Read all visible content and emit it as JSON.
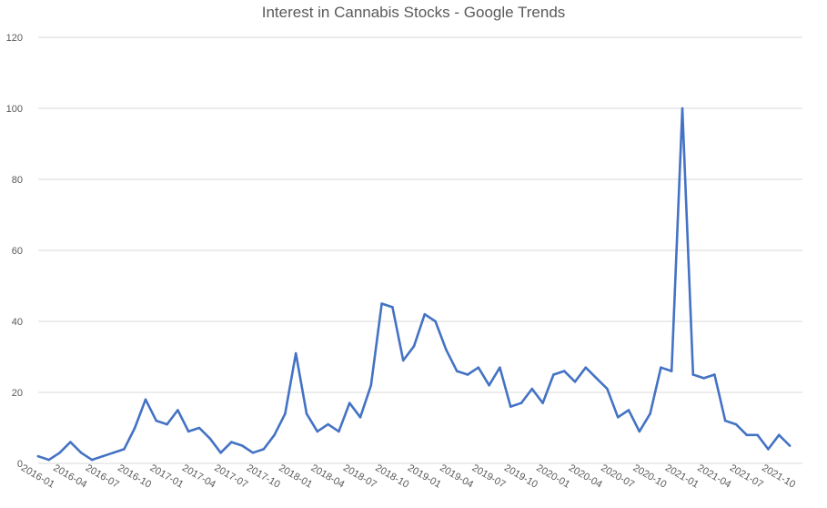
{
  "chart_data": {
    "type": "line",
    "title": "Interest in Cannabis Stocks - Google Trends",
    "xlabel": "",
    "ylabel": "",
    "ylim": [
      0,
      120
    ],
    "y_ticks": [
      0,
      20,
      40,
      60,
      80,
      100,
      120
    ],
    "grid": true,
    "legend": "none",
    "line_color": "#4472C4",
    "x_tick_labels": [
      "2016-01",
      "2016-04",
      "2016-07",
      "2016-10",
      "2017-01",
      "2017-04",
      "2017-07",
      "2017-10",
      "2018-01",
      "2018-04",
      "2018-07",
      "2018-10",
      "2019-01",
      "2019-04",
      "2019-07",
      "2019-10",
      "2020-01",
      "2020-04",
      "2020-07",
      "2020-10",
      "2021-01",
      "2021-04",
      "2021-07",
      "2021-10"
    ],
    "x": [
      "2016-01",
      "2016-02",
      "2016-03",
      "2016-04",
      "2016-05",
      "2016-06",
      "2016-07",
      "2016-08",
      "2016-09",
      "2016-10",
      "2016-11",
      "2016-12",
      "2017-01",
      "2017-02",
      "2017-03",
      "2017-04",
      "2017-05",
      "2017-06",
      "2017-07",
      "2017-08",
      "2017-09",
      "2017-10",
      "2017-11",
      "2017-12",
      "2018-01",
      "2018-02",
      "2018-03",
      "2018-04",
      "2018-05",
      "2018-06",
      "2018-07",
      "2018-08",
      "2018-09",
      "2018-10",
      "2018-11",
      "2018-12",
      "2019-01",
      "2019-02",
      "2019-03",
      "2019-04",
      "2019-05",
      "2019-06",
      "2019-07",
      "2019-08",
      "2019-09",
      "2019-10",
      "2019-11",
      "2019-12",
      "2020-01",
      "2020-02",
      "2020-03",
      "2020-04",
      "2020-05",
      "2020-06",
      "2020-07",
      "2020-08",
      "2020-09",
      "2020-10",
      "2020-11",
      "2020-12",
      "2021-01",
      "2021-02",
      "2021-03",
      "2021-04",
      "2021-05",
      "2021-06",
      "2021-07",
      "2021-08",
      "2021-09",
      "2021-10",
      "2021-11"
    ],
    "values": [
      2,
      1,
      3,
      6,
      3,
      1,
      2,
      3,
      4,
      10,
      18,
      12,
      11,
      15,
      9,
      10,
      7,
      3,
      6,
      5,
      3,
      4,
      8,
      14,
      31,
      14,
      9,
      11,
      9,
      17,
      13,
      22,
      45,
      44,
      29,
      33,
      42,
      40,
      32,
      26,
      25,
      27,
      22,
      27,
      16,
      17,
      21,
      17,
      25,
      26,
      23,
      27,
      24,
      21,
      13,
      15,
      9,
      14,
      27,
      26,
      100,
      25,
      24,
      25,
      12,
      11,
      8,
      8,
      4,
      8,
      5
    ]
  }
}
